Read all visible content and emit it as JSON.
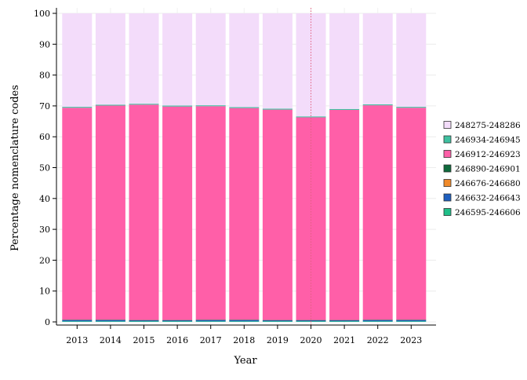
{
  "chart_data": {
    "type": "bar",
    "stacked": true,
    "xlabel": "Year",
    "ylabel": "Percentage nomenclature codes",
    "ylim": [
      0,
      100
    ],
    "yticks": [
      0,
      10,
      20,
      30,
      40,
      50,
      60,
      70,
      80,
      90,
      100
    ],
    "categories": [
      "2013",
      "2014",
      "2015",
      "2016",
      "2017",
      "2018",
      "2019",
      "2020",
      "2021",
      "2022",
      "2023"
    ],
    "reference_line": {
      "x": "2020",
      "color": "#e06080",
      "style": "dotted"
    },
    "legend_position": "right",
    "grid": true,
    "series": [
      {
        "name": "246595-246606",
        "color": "#1fbf88",
        "values": [
          0.2,
          0.2,
          0.2,
          0.2,
          0.2,
          0.2,
          0.2,
          0.2,
          0.2,
          0.2,
          0.2
        ]
      },
      {
        "name": "246632-246643",
        "color": "#1f5fbf",
        "values": [
          0.4,
          0.4,
          0.3,
          0.3,
          0.4,
          0.4,
          0.3,
          0.3,
          0.3,
          0.4,
          0.4
        ]
      },
      {
        "name": "246676-246680",
        "color": "#f08a2a",
        "values": [
          0.0,
          0.0,
          0.0,
          0.0,
          0.0,
          0.0,
          0.0,
          0.0,
          0.0,
          0.0,
          0.0
        ]
      },
      {
        "name": "246890-246901",
        "color": "#0e6a3c",
        "values": [
          0.1,
          0.1,
          0.1,
          0.1,
          0.1,
          0.1,
          0.1,
          0.1,
          0.1,
          0.1,
          0.1
        ]
      },
      {
        "name": "246912-246923",
        "color": "#ff5fa8",
        "values": [
          68.7,
          69.4,
          69.8,
          69.2,
          69.2,
          68.6,
          68.2,
          65.7,
          68.1,
          69.5,
          68.7
        ]
      },
      {
        "name": "246934-246945",
        "color": "#3fc0a0",
        "values": [
          0.3,
          0.3,
          0.3,
          0.3,
          0.3,
          0.3,
          0.3,
          0.3,
          0.3,
          0.3,
          0.3
        ]
      },
      {
        "name": "248275-248286",
        "color": "#f3dcfa",
        "values": [
          30.3,
          29.6,
          29.3,
          29.9,
          29.8,
          30.4,
          30.9,
          33.4,
          31.0,
          29.5,
          30.3
        ]
      }
    ]
  }
}
